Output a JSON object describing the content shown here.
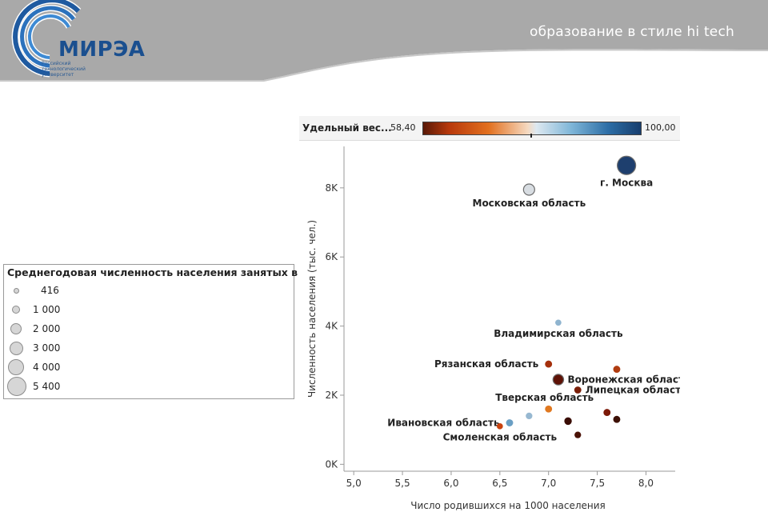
{
  "header": {
    "tagline": "образование в стиле hi tech",
    "logo_name": "МИРЭА",
    "logo_subtitle_1": "Российский",
    "logo_subtitle_2": "технологический",
    "logo_subtitle_3": "университет"
  },
  "size_legend": {
    "title": "Среднегодовая численность населения занятых в...",
    "items": [
      {
        "label": "416",
        "value": 416
      },
      {
        "label": "1 000",
        "value": 1000
      },
      {
        "label": "2 000",
        "value": 2000
      },
      {
        "label": "3 000",
        "value": 3000
      },
      {
        "label": "4 000",
        "value": 4000
      },
      {
        "label": "5 400",
        "value": 5400
      }
    ]
  },
  "color_legend": {
    "title": "Удельный вес...",
    "min_label": "58,40",
    "max_label": "100,00",
    "min": 58.4,
    "max": 100.0
  },
  "chart_data": {
    "type": "scatter",
    "xlabel": "Число родившихся на 1000 населения",
    "ylabel": "Численность населения (тыс. чел.)",
    "xlim": [
      4.9,
      8.3
    ],
    "ylim": [
      -200,
      9200
    ],
    "x_ticks": [
      5.0,
      5.5,
      6.0,
      6.5,
      7.0,
      7.5,
      8.0
    ],
    "x_tick_labels": [
      "5,0",
      "5,5",
      "6,0",
      "6,5",
      "7,0",
      "7,5",
      "8,0"
    ],
    "y_ticks": [
      0,
      2000,
      4000,
      6000,
      8000
    ],
    "y_tick_labels": [
      "0K",
      "2K",
      "4K",
      "6K",
      "8K"
    ],
    "grid": false,
    "points": [
      {
        "label": "г. Москва",
        "x": 7.8,
        "y": 8650,
        "color": "#1e3f6e",
        "size_value": 5400,
        "label_side": "below"
      },
      {
        "label": "Московская область",
        "x": 6.8,
        "y": 7950,
        "color": "#d8dde2",
        "size_value": 2000,
        "label_side": "below"
      },
      {
        "label": "Владимирская область",
        "x": 7.1,
        "y": 4100,
        "color": "#8fb4cf",
        "size_value": 600,
        "label_side": "below"
      },
      {
        "label": "Рязанская область",
        "x": 7.0,
        "y": 2900,
        "color": "#a5300c",
        "size_value": 800,
        "label_side": "left"
      },
      {
        "label": "Воронежская область",
        "x": 7.1,
        "y": 2450,
        "color": "#5e1206",
        "size_value": 1800,
        "label_side": "right"
      },
      {
        "label": "Липецкая область",
        "x": 7.3,
        "y": 2150,
        "color": "#7a1e08",
        "size_value": 800,
        "label_side": "right"
      },
      {
        "label": "",
        "x": 7.7,
        "y": 2750,
        "color": "#b03c10",
        "size_value": 800,
        "label_side": "none"
      },
      {
        "label": "Тверская область",
        "x": 7.0,
        "y": 1600,
        "color": "#e07820",
        "size_value": 800,
        "label_side": "above"
      },
      {
        "label": "Ивановская область",
        "x": 6.6,
        "y": 1200,
        "color": "#6a9fc4",
        "size_value": 800,
        "label_side": "left"
      },
      {
        "label": "",
        "x": 6.8,
        "y": 1400,
        "color": "#97b8d1",
        "size_value": 700,
        "label_side": "none"
      },
      {
        "label": "Смоленская область",
        "x": 6.5,
        "y": 1100,
        "color": "#c8420e",
        "size_value": 600,
        "label_side": "below"
      },
      {
        "label": "",
        "x": 7.2,
        "y": 1250,
        "color": "#3a0d05",
        "size_value": 900,
        "label_side": "none"
      },
      {
        "label": "",
        "x": 7.3,
        "y": 850,
        "color": "#4a1206",
        "size_value": 700,
        "label_side": "none"
      },
      {
        "label": "",
        "x": 7.6,
        "y": 1500,
        "color": "#7c1a08",
        "size_value": 800,
        "label_side": "none"
      },
      {
        "label": "",
        "x": 7.7,
        "y": 1300,
        "color": "#3d1005",
        "size_value": 800,
        "label_side": "none"
      }
    ]
  }
}
